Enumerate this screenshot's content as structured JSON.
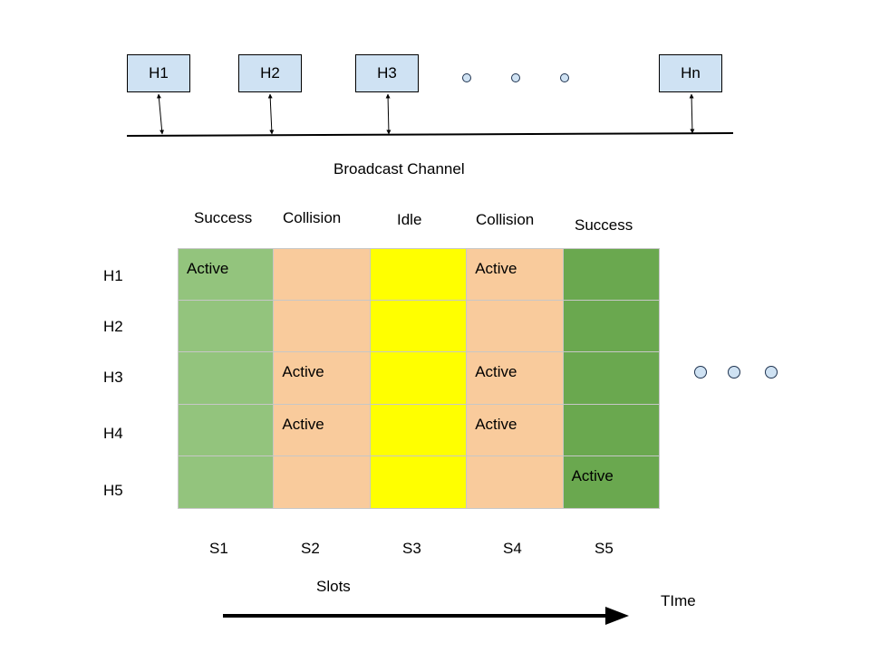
{
  "colors": {
    "host_fill": "#cfe2f3",
    "success": "#93c47d",
    "collision": "#f9cb9c",
    "idle": "#ffff00",
    "success_dark": "#6aa84f"
  },
  "hosts": [
    {
      "label": "H1"
    },
    {
      "label": "H2"
    },
    {
      "label": "H3"
    },
    {
      "label": "Hn"
    }
  ],
  "channel_label": "Broadcast Channel",
  "slot_states": [
    "Success",
    "Collision",
    "Idle",
    "Collision",
    "Success"
  ],
  "rows": [
    "H1",
    "H2",
    "H3",
    "H4",
    "H5"
  ],
  "slots": [
    "S1",
    "S2",
    "S3",
    "S4",
    "S5"
  ],
  "cells": [
    [
      "Active",
      "",
      "",
      "Active",
      ""
    ],
    [
      "",
      "",
      "",
      "",
      ""
    ],
    [
      "",
      "Active",
      "",
      "Active",
      ""
    ],
    [
      "",
      "Active",
      "",
      "Active",
      ""
    ],
    [
      "",
      "",
      "",
      "",
      "Active"
    ]
  ],
  "column_colors": [
    "#93c47d",
    "#f9cb9c",
    "#ffff00",
    "#f9cb9c",
    "#6aa84f"
  ],
  "slots_axis_label": "Slots",
  "time_label": "TIme"
}
